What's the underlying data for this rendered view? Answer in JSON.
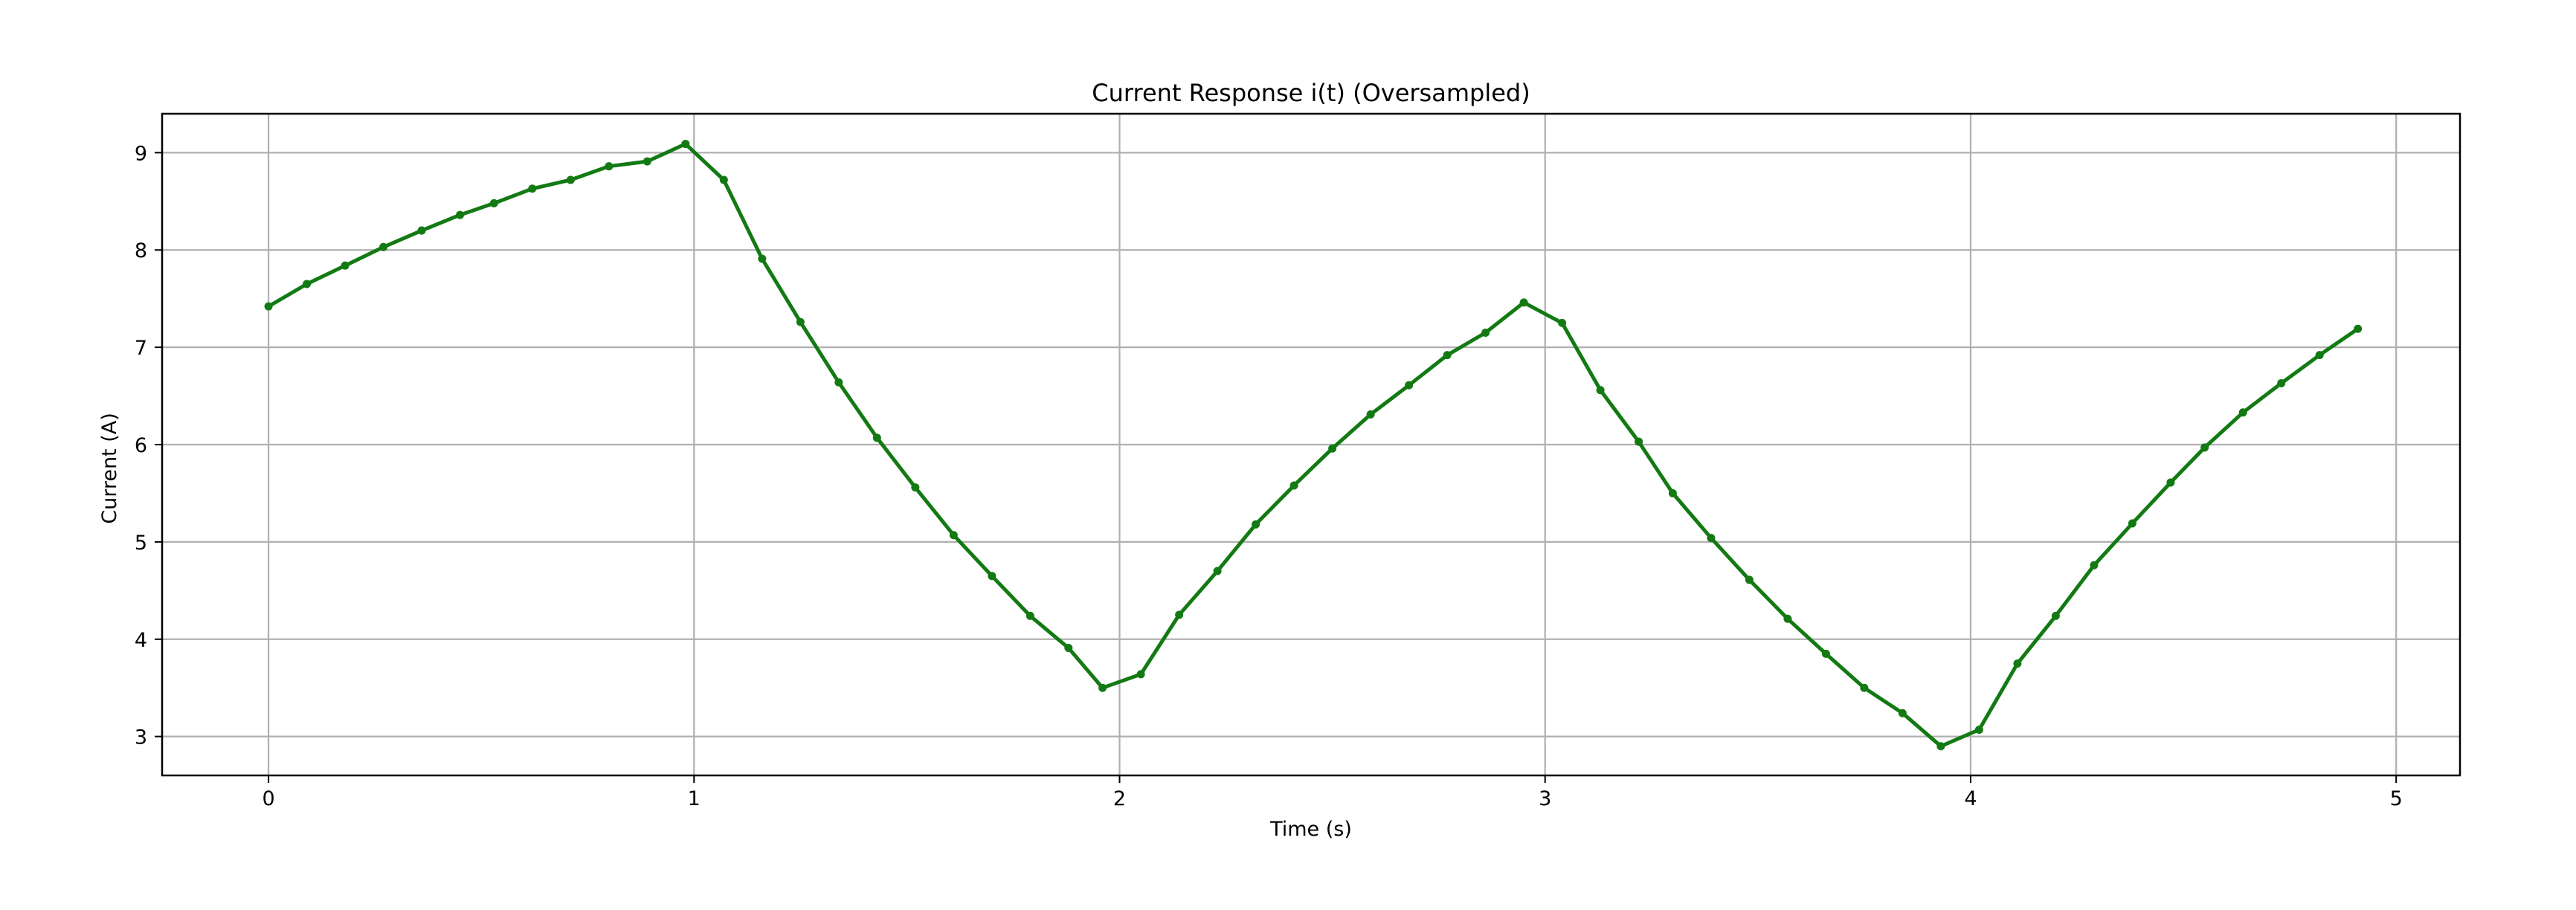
{
  "chart_data": {
    "type": "line",
    "title": "Current Response i(t) (Oversampled)",
    "xlabel": "Time (s)",
    "ylabel": "Current (A)",
    "xlim": [
      -0.25,
      5.15
    ],
    "ylim": [
      2.6,
      9.4
    ],
    "xticks": [
      "0",
      "1",
      "2",
      "3",
      "4",
      "5"
    ],
    "yticks": [
      "3",
      "4",
      "5",
      "6",
      "7",
      "8",
      "9"
    ],
    "grid": true,
    "colors": {
      "line": "#137a13",
      "grid": "#b0b0b0",
      "axes": "#000000"
    },
    "series": [
      {
        "x": [
          0.0,
          0.09,
          0.18,
          0.27,
          0.36,
          0.45,
          0.53,
          0.62,
          0.71,
          0.8,
          0.89,
          0.98,
          1.07,
          1.16,
          1.25,
          1.34,
          1.43,
          1.52,
          1.61,
          1.7,
          1.79,
          1.88,
          1.96,
          2.05,
          2.14,
          2.23,
          2.32,
          2.41,
          2.5,
          2.59,
          2.68,
          2.77,
          2.86,
          2.95,
          3.04,
          3.13,
          3.22,
          3.3,
          3.39,
          3.48,
          3.57,
          3.66,
          3.75,
          3.84,
          3.93,
          4.02,
          4.11,
          4.2,
          4.29,
          4.38,
          4.47,
          4.55,
          4.64,
          4.73,
          4.82,
          4.91
        ],
        "y": [
          7.42,
          7.65,
          7.84,
          8.03,
          8.2,
          8.36,
          8.48,
          8.63,
          8.72,
          8.86,
          8.91,
          9.09,
          8.72,
          7.91,
          7.26,
          6.64,
          6.07,
          5.56,
          5.07,
          4.65,
          4.24,
          3.91,
          3.5,
          3.64,
          4.25,
          4.7,
          5.18,
          5.58,
          5.96,
          6.31,
          6.61,
          6.92,
          7.15,
          7.46,
          7.25,
          6.56,
          6.03,
          5.5,
          5.04,
          4.61,
          4.21,
          3.85,
          3.5,
          3.24,
          2.9,
          3.07,
          3.75,
          4.24,
          4.76,
          5.19,
          5.61,
          5.97,
          6.33,
          6.63,
          6.92,
          7.19
        ]
      }
    ]
  }
}
